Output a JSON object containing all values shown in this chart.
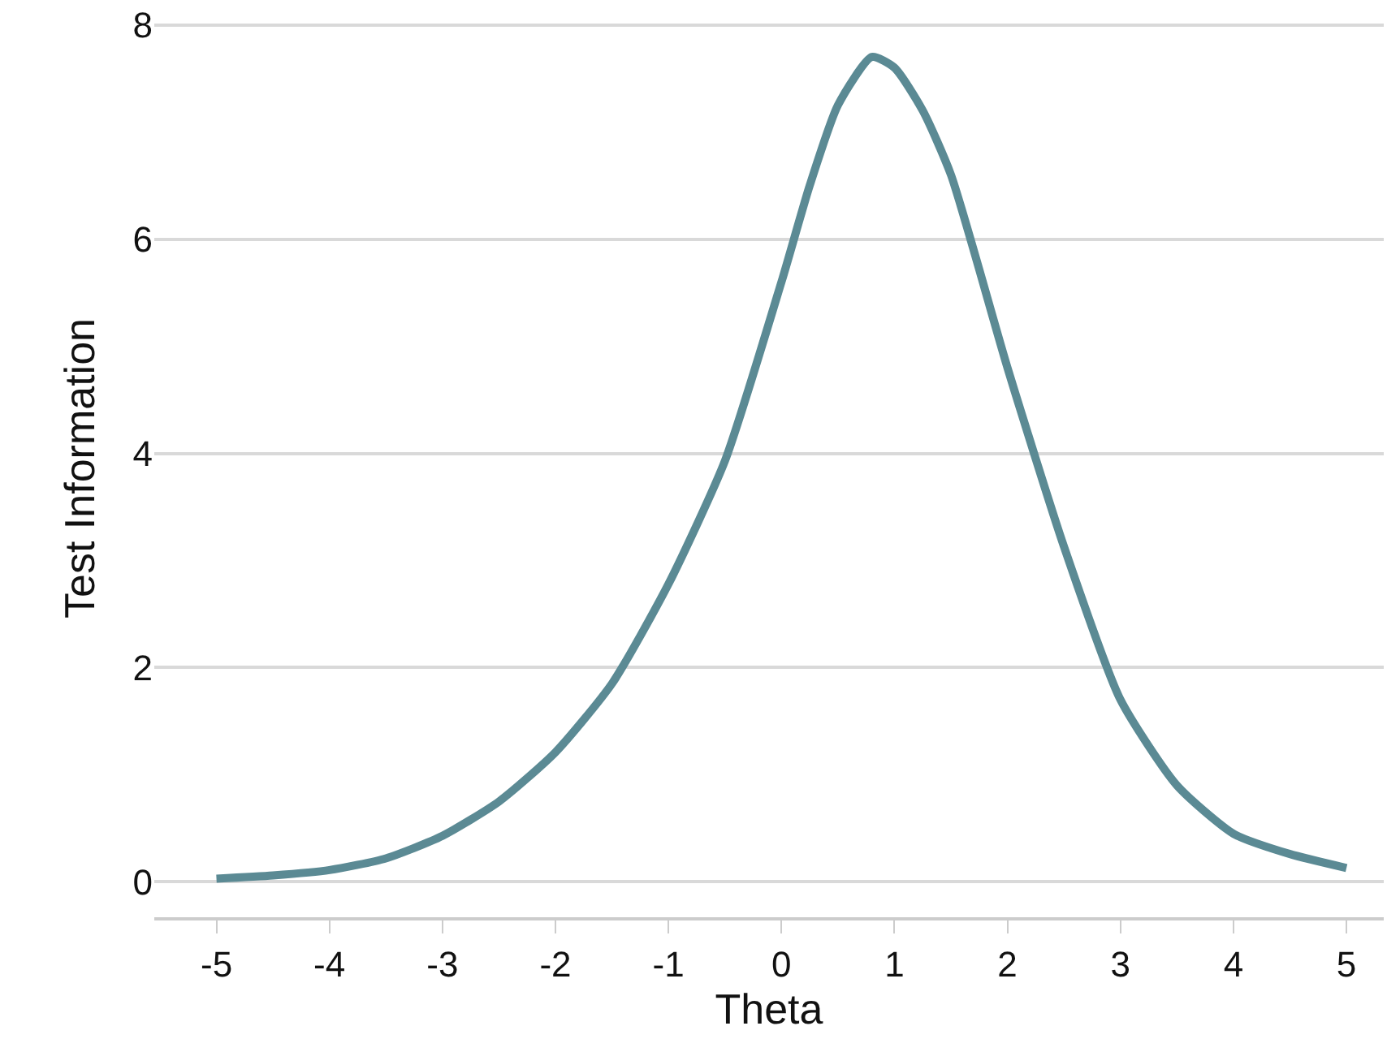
{
  "chart_data": {
    "type": "line",
    "xlabel": "Theta",
    "ylabel": "Test Information",
    "series": [
      {
        "color": "#5b8a94",
        "x": [
          -5,
          -4.5,
          -4,
          -3.5,
          -3,
          -2.5,
          -2,
          -1.5,
          -1,
          -0.5,
          0,
          0.25,
          0.5,
          0.8,
          1,
          1.25,
          1.5,
          2,
          2.5,
          3,
          3.5,
          4,
          4.5,
          5
        ],
        "values": [
          0.03,
          0.06,
          0.11,
          0.22,
          0.43,
          0.75,
          1.21,
          1.85,
          2.78,
          3.93,
          5.6,
          6.5,
          7.25,
          7.7,
          7.6,
          7.2,
          6.6,
          4.8,
          3.13,
          1.7,
          0.9,
          0.45,
          0.26,
          0.13
        ]
      }
    ],
    "xlim": [
      -5.55,
      5.33
    ],
    "ylim": [
      -0.33,
      8.05
    ],
    "xticks": [
      -5,
      -4,
      -3,
      -2,
      -1,
      0,
      1,
      2,
      3,
      4,
      5
    ],
    "yticks": [
      0,
      2,
      4,
      6,
      8
    ],
    "grid": "y",
    "marker": "none",
    "line_style": "solid"
  }
}
